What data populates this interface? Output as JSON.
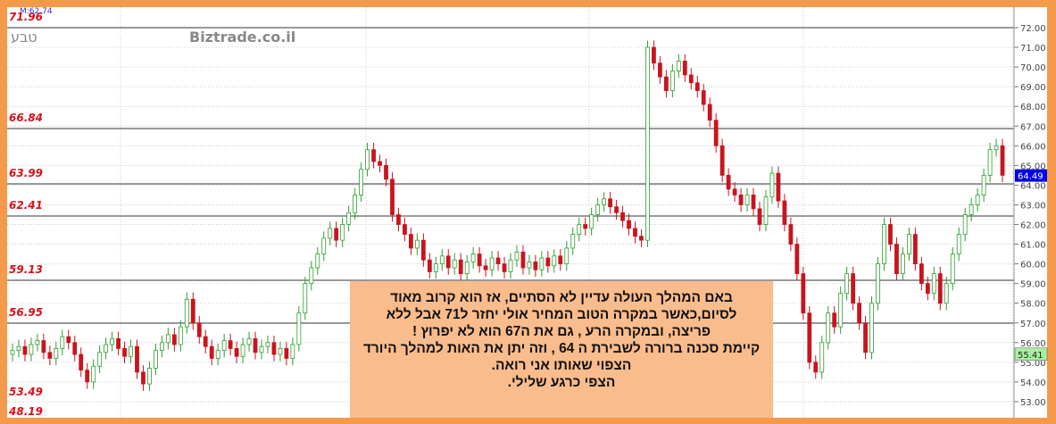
{
  "header": {
    "indicator": "M:62.74",
    "symbol": "טבע",
    "watermark": "Biztrade.co.il"
  },
  "colors": {
    "up": "#2E9E2E",
    "down": "#C8141E",
    "level_text": "#D8101A",
    "last_price_bg": "#0000E0",
    "marker_bg": "#A8F0A0",
    "frame": "#F5994A",
    "note_bg": "#F9BC8C"
  },
  "chart_data": {
    "type": "candlestick",
    "ylim": [
      52.6,
      72.4
    ],
    "y_ticks": [
      "72.00",
      "71.00",
      "70.00",
      "69.00",
      "68.00",
      "67.00",
      "66.00",
      "65.00",
      "64.00",
      "63.00",
      "62.00",
      "61.00",
      "60.00",
      "59.00",
      "58.00",
      "57.00",
      "56.00",
      "55.00",
      "54.00",
      "53.00"
    ],
    "grid": true,
    "last_price": "64.49",
    "marker_price": "55.41",
    "levels": [
      {
        "label": "71.96",
        "value": 71.96
      },
      {
        "label": "66.84",
        "value": 66.84
      },
      {
        "label": "63.99",
        "value": 63.99
      },
      {
        "label": "62.41",
        "value": 62.41
      },
      {
        "label": "59.13",
        "value": 59.13
      },
      {
        "label": "56.95",
        "value": 56.95
      },
      {
        "label": "53.49",
        "value": 53.49
      },
      {
        "label": "48.19",
        "value": 48.19
      }
    ],
    "closes": [
      55.6,
      55.8,
      55.4,
      55.9,
      56.1,
      55.5,
      55.2,
      55.7,
      56.3,
      56.0,
      55.4,
      54.6,
      54.0,
      54.8,
      55.5,
      55.9,
      56.2,
      55.7,
      55.3,
      55.8,
      54.5,
      53.9,
      54.7,
      55.6,
      56.0,
      56.4,
      55.9,
      56.8,
      58.2,
      57.0,
      56.3,
      55.8,
      55.2,
      55.6,
      56.1,
      55.7,
      55.3,
      55.9,
      56.2,
      55.5,
      55.8,
      56.0,
      55.4,
      55.7,
      55.2,
      55.9,
      57.5,
      59.0,
      59.8,
      60.5,
      61.3,
      61.8,
      61.2,
      62.0,
      62.6,
      63.5,
      64.8,
      65.8,
      65.2,
      65.0,
      64.3,
      62.5,
      62.0,
      61.5,
      60.8,
      61.2,
      60.2,
      59.6,
      60.0,
      60.4,
      59.8,
      60.2,
      59.5,
      60.1,
      60.5,
      59.9,
      59.7,
      60.3,
      60.0,
      59.6,
      60.2,
      60.6,
      59.8,
      60.1,
      59.7,
      60.3,
      59.9,
      60.4,
      60.0,
      60.8,
      61.5,
      62.0,
      61.8,
      62.5,
      63.0,
      63.3,
      62.9,
      62.6,
      62.2,
      61.8,
      61.4,
      61.2,
      71.0,
      70.2,
      69.5,
      68.8,
      69.8,
      70.3,
      69.6,
      69.2,
      68.8,
      68.1,
      67.3,
      66.0,
      64.5,
      63.8,
      63.5,
      63.0,
      63.5,
      62.8,
      62.0,
      63.4,
      64.6,
      63.2,
      62.0,
      61.0,
      59.5,
      57.5,
      55.0,
      54.5,
      56.0,
      57.5,
      56.8,
      58.5,
      59.5,
      58.0,
      57.0,
      55.5,
      58.0,
      60.0,
      62.0,
      61.0,
      59.5,
      60.5,
      61.5,
      60.0,
      59.0,
      58.5,
      59.5,
      58.0,
      59.0,
      60.5,
      61.5,
      62.5,
      63.0,
      63.5,
      64.5,
      65.8,
      66.0,
      64.5
    ]
  },
  "note": {
    "lines": [
      "באם המהלך העולה  עדיין לא  הסתיים,  אז  הוא קרוב  מאוד",
      "לסיום,כאשר  במקרה  הטוב    המחיר   אולי יחזר ל71  אבל ללא",
      "פריצה, ובמקרה  הרע , גם  את  ה67  הוא  לא  יפרוץ !",
      "קיימת סכנה  ברורה  לשבירת  ה 64 , וזה יתן את האות  למהלך היורד",
      "הצפוי  שאותו  אני רואה.",
      "הצפי כרגע  שלילי."
    ]
  }
}
